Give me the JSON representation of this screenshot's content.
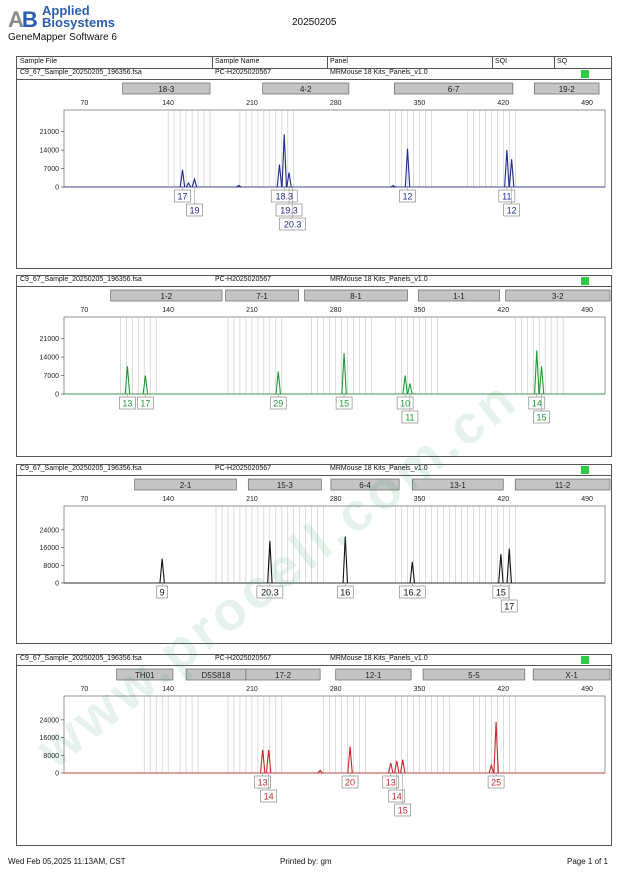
{
  "header": {
    "logo_brand": "Applied Biosystems",
    "logo_line1": "Applied",
    "logo_line2": "Biosystems",
    "logo_mark": "AB",
    "software": "GeneMapper Software 6",
    "date_title": "20250205"
  },
  "columns": [
    "Sample File",
    "Sample Name",
    "Panel",
    "SQI",
    "SQ"
  ],
  "panel_info": {
    "file": "C9_67_Sample_20250205_196356.fsa",
    "sample": "PC-H2025020567",
    "panel": "MRMouse 18 Kits_Panels_v1.0"
  },
  "footer": {
    "left": "Wed Feb 05,2025 11:13AM, CST",
    "center": "Printed by: gm",
    "right": "Page 1 of 1"
  },
  "watermark": "www.procell.com.cn",
  "chart_data": [
    {
      "type": "line",
      "dye": "blue",
      "color": "#1f2a8c",
      "x_ticks": [
        70,
        140,
        210,
        280,
        350,
        420,
        490
      ],
      "y_ticks": [
        0,
        7000,
        14000,
        21000
      ],
      "xlim": [
        53,
        505
      ],
      "ylim": [
        0,
        23500
      ],
      "markers": [
        {
          "name": "18-3",
          "range": [
            102,
            175
          ]
        },
        {
          "name": "4-2",
          "range": [
            219,
            291
          ]
        },
        {
          "name": "6-7",
          "range": [
            329,
            428
          ]
        },
        {
          "name": "19-2",
          "range": [
            446,
            500
          ]
        }
      ],
      "bins": [
        140,
        145,
        150,
        155,
        160,
        165,
        170,
        175,
        200,
        205,
        210,
        215,
        220,
        225,
        230,
        235,
        240,
        245,
        325,
        330,
        335,
        340,
        345,
        350,
        355,
        360,
        390,
        395,
        400,
        405,
        410,
        415,
        420,
        425,
        430
      ],
      "peaks": [
        [
          152,
          6500
        ],
        [
          157,
          1500
        ],
        [
          162,
          3000
        ],
        [
          199,
          600
        ],
        [
          233,
          8500
        ],
        [
          237,
          20000
        ],
        [
          241,
          5500
        ],
        [
          328,
          500
        ],
        [
          340,
          14500
        ],
        [
          423,
          14000
        ],
        [
          427,
          10500
        ]
      ],
      "labels": [
        {
          "text": "17",
          "x": 152,
          "row": 0
        },
        {
          "text": "19",
          "x": 162,
          "row": 1
        },
        {
          "text": "18.3",
          "x": 237,
          "row": 0
        },
        {
          "text": "19.3",
          "x": 241,
          "row": 1
        },
        {
          "text": "20.3",
          "x": 244,
          "row": 2
        },
        {
          "text": "12",
          "x": 340,
          "row": 0
        },
        {
          "text": "11",
          "x": 423,
          "row": 0
        },
        {
          "text": "12",
          "x": 427,
          "row": 1
        }
      ]
    },
    {
      "type": "line",
      "dye": "green",
      "color": "#1f9a35",
      "x_ticks": [
        70,
        140,
        210,
        280,
        350,
        420,
        490
      ],
      "y_ticks": [
        0,
        7000,
        14000,
        21000
      ],
      "xlim": [
        53,
        505
      ],
      "ylim": [
        0,
        23500
      ],
      "markers": [
        {
          "name": "1-2",
          "range": [
            92,
            185
          ]
        },
        {
          "name": "7-1",
          "range": [
            188,
            249
          ]
        },
        {
          "name": "8-1",
          "range": [
            254,
            340
          ]
        },
        {
          "name": "1-1",
          "range": [
            349,
            417
          ]
        },
        {
          "name": "3-2",
          "range": [
            422,
            515
          ]
        }
      ],
      "bins": [
        100,
        105,
        110,
        115,
        120,
        125,
        130,
        190,
        195,
        200,
        205,
        210,
        215,
        220,
        225,
        230,
        235,
        260,
        265,
        270,
        275,
        280,
        285,
        290,
        295,
        300,
        305,
        310,
        330,
        335,
        340,
        345,
        350,
        355,
        360,
        365,
        430,
        435,
        440,
        445,
        450,
        455,
        460,
        465,
        470
      ],
      "peaks": [
        [
          106,
          10500
        ],
        [
          121,
          7000
        ],
        [
          232,
          8500
        ],
        [
          287,
          15500
        ],
        [
          338,
          7000
        ],
        [
          342,
          4000
        ],
        [
          448,
          16500
        ],
        [
          452,
          10500
        ]
      ],
      "labels": [
        {
          "text": "13",
          "x": 106,
          "row": 0
        },
        {
          "text": "17",
          "x": 121,
          "row": 0
        },
        {
          "text": "29",
          "x": 232,
          "row": 0
        },
        {
          "text": "15",
          "x": 287,
          "row": 0
        },
        {
          "text": "10",
          "x": 338,
          "row": 0
        },
        {
          "text": "11",
          "x": 342,
          "row": 1
        },
        {
          "text": "14",
          "x": 448,
          "row": 0
        },
        {
          "text": "15",
          "x": 452,
          "row": 1
        }
      ]
    },
    {
      "type": "line",
      "dye": "black",
      "color": "#111111",
      "x_ticks": [
        70,
        140,
        210,
        280,
        350,
        420,
        490
      ],
      "y_ticks": [
        0,
        8000,
        16000,
        24000
      ],
      "xlim": [
        53,
        505
      ],
      "ylim": [
        0,
        28000
      ],
      "markers": [
        {
          "name": "2-1",
          "range": [
            112,
            197
          ]
        },
        {
          "name": "15-3",
          "range": [
            207,
            268
          ]
        },
        {
          "name": "6-4",
          "range": [
            276,
            333
          ]
        },
        {
          "name": "13-1",
          "range": [
            344,
            420
          ]
        },
        {
          "name": "11-2",
          "range": [
            430,
            545
          ]
        }
      ],
      "bins": [
        180,
        185,
        190,
        195,
        200,
        205,
        210,
        215,
        220,
        225,
        230,
        235,
        240,
        245,
        250,
        255,
        260,
        265,
        270,
        330,
        335,
        340,
        345,
        350,
        355,
        360,
        365,
        370,
        375,
        380,
        385,
        390,
        395,
        400,
        405,
        410,
        415,
        420,
        425,
        430
      ],
      "peaks": [
        [
          135,
          11000
        ],
        [
          225,
          19000
        ],
        [
          288,
          21000
        ],
        [
          344,
          9500
        ],
        [
          418,
          13000
        ],
        [
          425,
          15500
        ]
      ],
      "labels": [
        {
          "text": "9",
          "x": 135,
          "row": 0
        },
        {
          "text": "20.3",
          "x": 225,
          "row": 0
        },
        {
          "text": "16",
          "x": 288,
          "row": 0
        },
        {
          "text": "16.2",
          "x": 344,
          "row": 0
        },
        {
          "text": "15",
          "x": 418,
          "row": 0
        },
        {
          "text": "17",
          "x": 425,
          "row": 1
        }
      ]
    },
    {
      "type": "line",
      "dye": "red",
      "color": "#c62828",
      "x_ticks": [
        70,
        140,
        210,
        280,
        350,
        420,
        490
      ],
      "y_ticks": [
        0,
        8000,
        16000,
        24000
      ],
      "xlim": [
        53,
        505
      ],
      "ylim": [
        0,
        28000
      ],
      "markers": [
        {
          "name": "TH01",
          "range": [
            97,
            144
          ]
        },
        {
          "name": "D5S818",
          "range": [
            155,
            205
          ]
        },
        {
          "name": "17-2",
          "range": [
            205,
            267
          ]
        },
        {
          "name": "12-1",
          "range": [
            280,
            343
          ]
        },
        {
          "name": "5-5",
          "range": [
            353,
            438
          ]
        },
        {
          "name": "X-1",
          "range": [
            445,
            571
          ]
        }
      ],
      "bins": [
        120,
        125,
        130,
        135,
        140,
        150,
        155,
        160,
        165,
        190,
        195,
        200,
        205,
        210,
        215,
        220,
        225,
        230,
        235,
        270,
        275,
        280,
        285,
        290,
        295,
        300,
        305,
        330,
        335,
        340,
        345,
        350,
        355,
        360,
        365,
        370,
        375,
        395,
        400,
        405,
        410,
        415,
        420,
        425,
        430
      ],
      "peaks": [
        [
          219,
          10500
        ],
        [
          224,
          10500
        ],
        [
          267,
          1200
        ],
        [
          292,
          12000
        ],
        [
          326,
          4500
        ],
        [
          331,
          5500
        ],
        [
          336,
          6000
        ],
        [
          410,
          3500
        ],
        [
          414,
          23000
        ]
      ],
      "labels": [
        {
          "text": "13",
          "x": 219,
          "row": 0
        },
        {
          "text": "14",
          "x": 224,
          "row": 1
        },
        {
          "text": "20",
          "x": 292,
          "row": 0
        },
        {
          "text": "13",
          "x": 326,
          "row": 0
        },
        {
          "text": "14",
          "x": 331,
          "row": 1
        },
        {
          "text": "15",
          "x": 336,
          "row": 2
        },
        {
          "text": "25",
          "x": 414,
          "row": 0
        }
      ]
    }
  ]
}
